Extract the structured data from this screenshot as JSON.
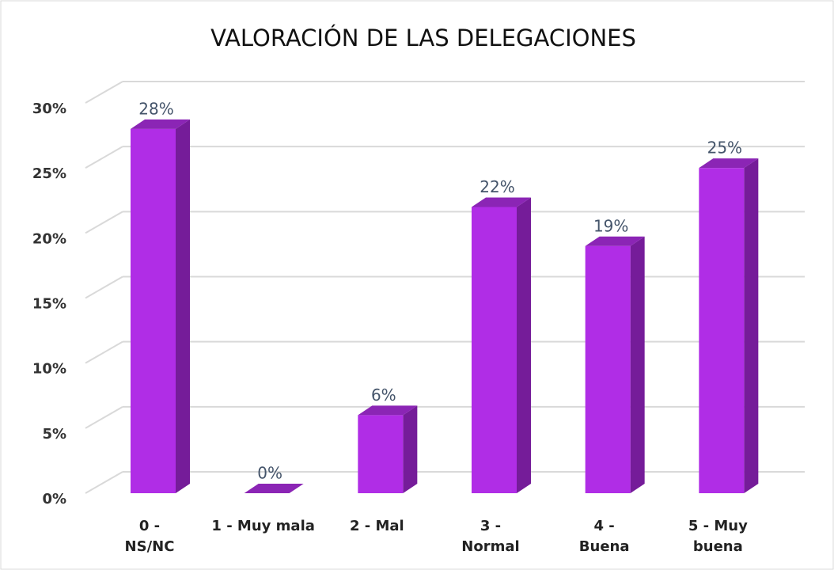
{
  "chart_data": {
    "type": "bar3d",
    "title": "VALORACIÓN  DE LAS DELEGACIONES",
    "categories": [
      "0 - NS/NC",
      "1 - Muy mala",
      "2 - Mal",
      "3 - Normal",
      "4 - Buena",
      "5 - Muy buena"
    ],
    "values": [
      28,
      0,
      6,
      22,
      19,
      25
    ],
    "value_labels": [
      "28%",
      "0%",
      "6%",
      "22%",
      "19%",
      "25%"
    ],
    "color": "#b02de6",
    "ylim": [
      0,
      30
    ],
    "yticks": [
      {
        "value": 0,
        "label": "0%"
      },
      {
        "value": 5,
        "label": "5%"
      },
      {
        "value": 10,
        "label": "10%"
      },
      {
        "value": 15,
        "label": "15%"
      },
      {
        "value": 20,
        "label": "20%"
      },
      {
        "value": 25,
        "label": "25%"
      },
      {
        "value": 30,
        "label": "30%"
      }
    ],
    "grid": true
  }
}
